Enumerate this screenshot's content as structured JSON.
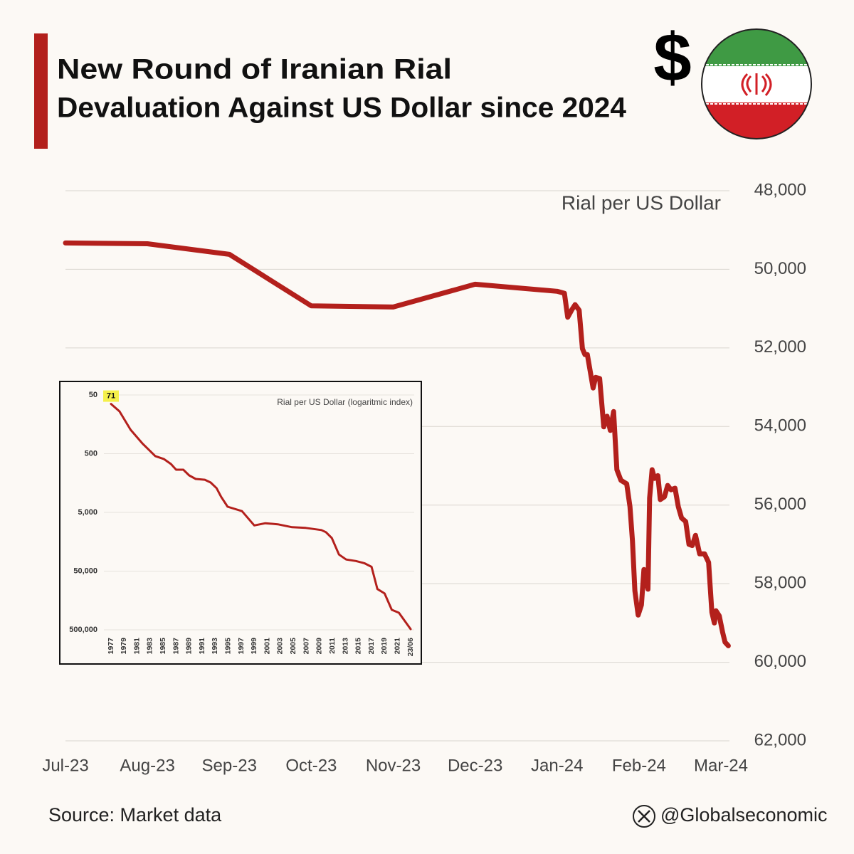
{
  "chart_data": [
    {
      "type": "line",
      "title": [
        "New Round of Iranian Rial",
        "Devaluation Against US Dollar since 2024"
      ],
      "symbol": "$",
      "y_label": "Rial per US Dollar",
      "source": "Source: Market data",
      "credit": "@Globalseconomic",
      "xlim": [
        0,
        8
      ],
      "xticks": [
        {
          "value": 0,
          "label": "Jul-23"
        },
        {
          "value": 1,
          "label": "Aug-23"
        },
        {
          "value": 2,
          "label": "Sep-23"
        },
        {
          "value": 3,
          "label": "Oct-23"
        },
        {
          "value": 4,
          "label": "Nov-23"
        },
        {
          "value": 5,
          "label": "Dec-23"
        },
        {
          "value": 6,
          "label": "Jan-24"
        },
        {
          "value": 7,
          "label": "Feb-24"
        },
        {
          "value": 8,
          "label": "Mar-24"
        }
      ],
      "ylim": [
        48000,
        62000
      ],
      "y_inverted": true,
      "yticks": [
        {
          "value": 48000,
          "label": "48,000"
        },
        {
          "value": 50000,
          "label": "50,000"
        },
        {
          "value": 52000,
          "label": "52,000"
        },
        {
          "value": 54000,
          "label": "54,000"
        },
        {
          "value": 56000,
          "label": "56,000"
        },
        {
          "value": 58000,
          "label": "58,000"
        },
        {
          "value": 60000,
          "label": "60,000"
        },
        {
          "value": 62000,
          "label": "62,000"
        }
      ],
      "grid": true,
      "series": [
        {
          "color": "#b3201c",
          "x": [
            0,
            1,
            2,
            3,
            4,
            5,
            6,
            6.09,
            6.13,
            6.18,
            6.22,
            6.27,
            6.31,
            6.34,
            6.37,
            6.44,
            6.47,
            6.52,
            6.57,
            6.61,
            6.65,
            6.69,
            6.73,
            6.78,
            6.85,
            6.89,
            6.92,
            6.95,
            6.99,
            7.03,
            7.06,
            7.11,
            7.13,
            7.16,
            7.19,
            7.23,
            7.26,
            7.31,
            7.35,
            7.39,
            7.44,
            7.48,
            7.52,
            7.57,
            7.61,
            7.65,
            7.69,
            7.74,
            7.8,
            7.85,
            7.89,
            7.92,
            7.94,
            7.98,
            8.02,
            8.05,
            8.09
          ],
          "values": [
            49330,
            49350,
            49620,
            50930,
            50960,
            50380,
            50560,
            50610,
            51220,
            51030,
            50900,
            51040,
            52020,
            52170,
            52170,
            53020,
            52750,
            52780,
            54010,
            53740,
            54100,
            53620,
            55100,
            55370,
            55460,
            56040,
            56910,
            58180,
            58800,
            58540,
            57640,
            58140,
            55820,
            55100,
            55320,
            55250,
            55860,
            55790,
            55500,
            55610,
            55570,
            56040,
            56330,
            56420,
            57000,
            57030,
            56770,
            57240,
            57240,
            57460,
            58730,
            59000,
            58690,
            58820,
            59230,
            59490,
            59580
          ]
        }
      ]
    },
    {
      "type": "line",
      "y_label": "Rial per US Dollar (logaritmic index)",
      "xlim": [
        1977,
        2023
      ],
      "xticks": [
        1977,
        1979,
        1981,
        1983,
        1985,
        1987,
        1989,
        1991,
        1993,
        1995,
        1997,
        1999,
        2001,
        2003,
        2005,
        2007,
        2009,
        2011,
        2013,
        2015,
        2017,
        2019,
        2021,
        {
          "value": 2023,
          "label": "23/06"
        }
      ],
      "ylim": [
        50,
        500000
      ],
      "y_log": true,
      "y_inverted": true,
      "yticks": [
        50,
        500,
        {
          "value": 5000,
          "label": "5,000"
        },
        {
          "value": 50000,
          "label": "50,000"
        },
        {
          "value": 500000,
          "label": "500,000"
        }
      ],
      "grid": true,
      "annotations": [
        {
          "text": "71",
          "x": 1977,
          "y": 71,
          "color": "#f5f04a"
        }
      ],
      "series": [
        {
          "color": "#b3201c",
          "x": [
            1977,
            1978.3,
            1980,
            1981.8,
            1983.8,
            1985.1,
            1986.2,
            1987,
            1988.1,
            1989,
            1990,
            1991.4,
            1992.3,
            1993.2,
            1993.9,
            1994.9,
            1997.1,
            1999,
            2000.7,
            2002.6,
            2004.8,
            2006.9,
            2009.3,
            2010,
            2010.9,
            2012,
            2013.1,
            2014.6,
            2015.9,
            2017,
            2017.9,
            2019,
            2020.1,
            2021.2,
            2023
          ],
          "values": [
            71,
            95,
            196,
            333,
            550,
            615,
            750,
            937,
            937,
            1170,
            1348,
            1388,
            1550,
            1930,
            2710,
            4000,
            4760,
            8340,
            7650,
            7970,
            8930,
            9180,
            9990,
            10860,
            13700,
            26100,
            31700,
            33600,
            36700,
            42300,
            101000,
            120000,
            228000,
            256000,
            486000
          ]
        }
      ]
    }
  ]
}
